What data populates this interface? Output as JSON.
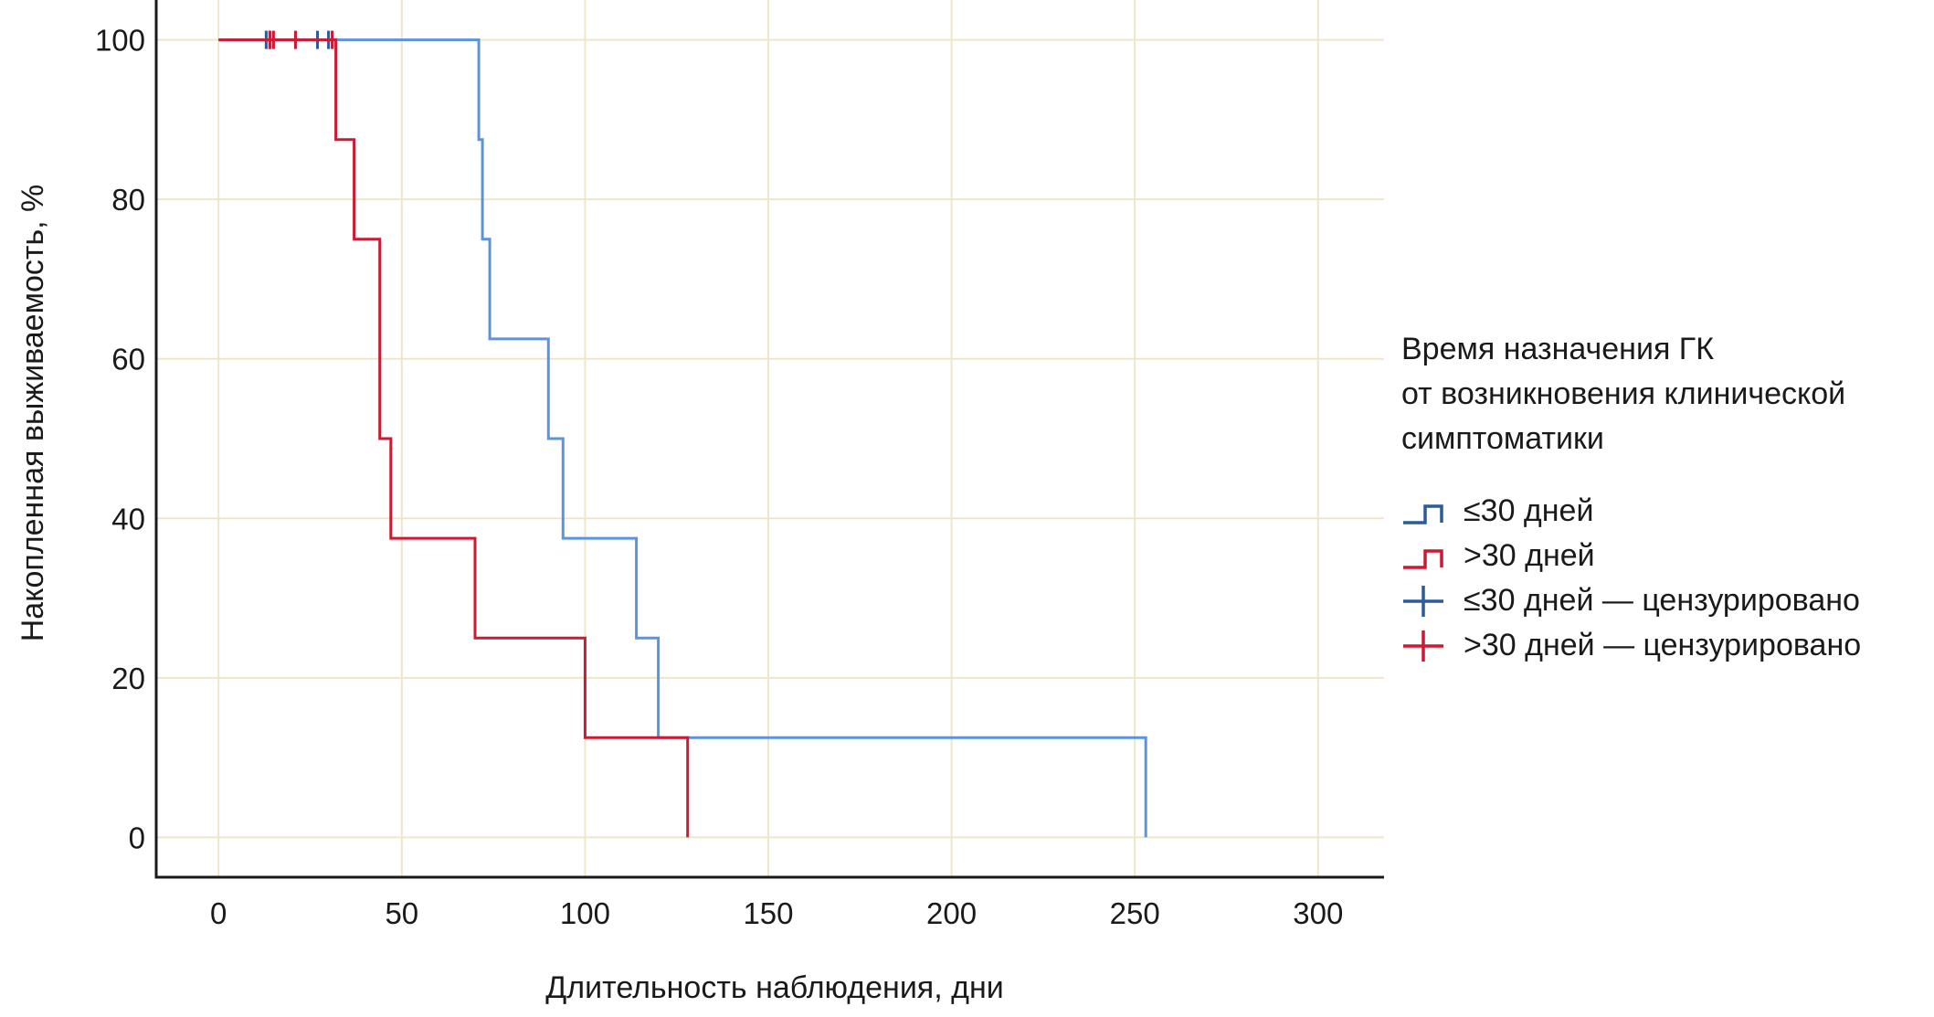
{
  "chart_data": {
    "type": "line",
    "subtype": "kaplan-meier",
    "xlabel": "Длительность наблюдения, дни",
    "ylabel": "Накопленная выживаемость, %",
    "xlim": [
      -17,
      318
    ],
    "ylim": [
      -5,
      105
    ],
    "xticks": [
      "0",
      "50",
      "100",
      "150",
      "200",
      "250",
      "300"
    ],
    "yticks": [
      "0",
      "20",
      "40",
      "60",
      "80",
      "100"
    ],
    "grid": true,
    "grid_color": "#efe6c9",
    "legend": {
      "title_lines": [
        "Время назначения ГК",
        "от возникновения клинической",
        "симптоматики"
      ],
      "placement": "right"
    },
    "series": [
      {
        "name": "≤30 дней",
        "color": "#5b93e1",
        "legend_color": "#2a5c9a",
        "points": [
          [
            0,
            100
          ],
          [
            71,
            100
          ],
          [
            71,
            87.5
          ],
          [
            72,
            87.5
          ],
          [
            72,
            75
          ],
          [
            74,
            75
          ],
          [
            74,
            62.5
          ],
          [
            90,
            62.5
          ],
          [
            90,
            50
          ],
          [
            94,
            50
          ],
          [
            94,
            37.5
          ],
          [
            114,
            37.5
          ],
          [
            114,
            25
          ],
          [
            120,
            25
          ],
          [
            120,
            12.5
          ],
          [
            253,
            12.5
          ],
          [
            253,
            0
          ]
        ],
        "censored": [
          [
            13,
            100
          ],
          [
            14,
            100
          ],
          [
            27,
            100
          ],
          [
            30,
            100
          ]
        ]
      },
      {
        "name": ">30 дней",
        "color": "#cc1a33",
        "legend_color": "#cc1a33",
        "points": [
          [
            0,
            100
          ],
          [
            32,
            100
          ],
          [
            32,
            87.5
          ],
          [
            37,
            87.5
          ],
          [
            37,
            75
          ],
          [
            44,
            75
          ],
          [
            44,
            50
          ],
          [
            47,
            50
          ],
          [
            47,
            37.5
          ],
          [
            70,
            37.5
          ],
          [
            70,
            25
          ],
          [
            100,
            25
          ],
          [
            100,
            12.5
          ],
          [
            128,
            12.5
          ],
          [
            128,
            0
          ]
        ],
        "censored": [
          [
            14,
            100
          ],
          [
            15,
            100
          ],
          [
            21,
            100
          ],
          [
            31,
            100
          ]
        ]
      }
    ],
    "legend_entries": [
      {
        "label": "≤30 дней",
        "kind": "step",
        "color": "#2a5c9a"
      },
      {
        "label": ">30 дней",
        "kind": "step",
        "color": "#cc1a33"
      },
      {
        "label": "≤30 дней — цензурировано",
        "kind": "cross",
        "color": "#2a5c9a"
      },
      {
        "label": ">30 дней — цензурировано",
        "kind": "cross",
        "color": "#cc1a33"
      }
    ]
  }
}
